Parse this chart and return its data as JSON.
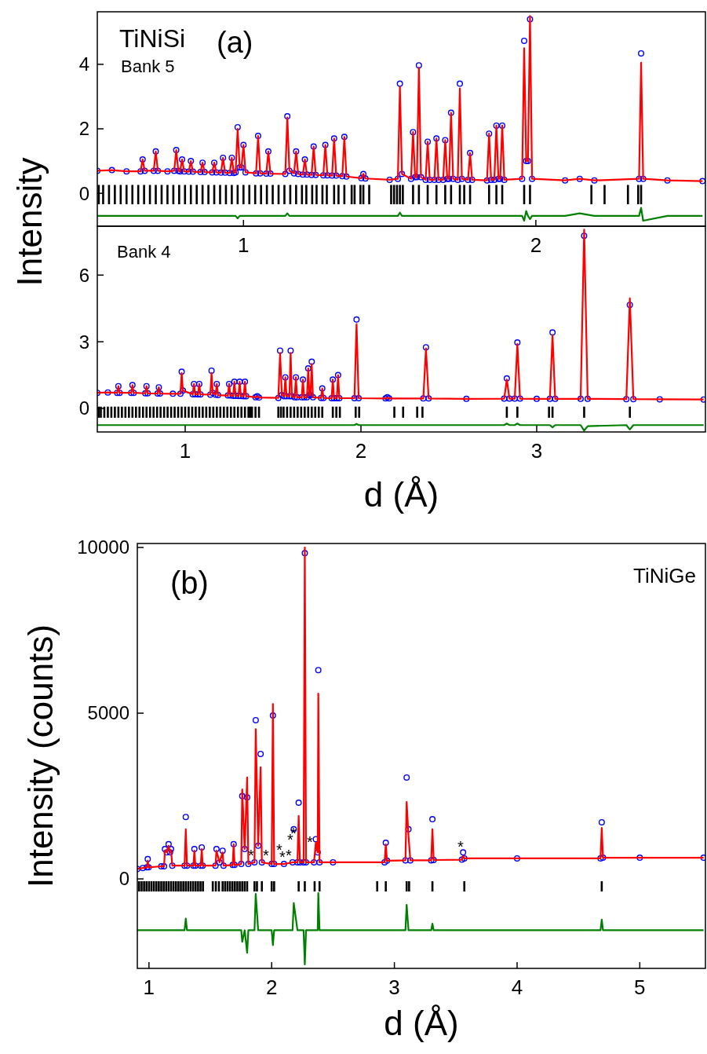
{
  "chart_data": [
    {
      "type": "scatter",
      "annotations": [
        "TiNiSi",
        "(a)",
        "Bank 5"
      ],
      "ylabel": "Intensity",
      "xlim": [
        0.5,
        2.58
      ],
      "xticks": [
        1,
        2
      ],
      "ylim": [
        -1.02,
        5.63
      ],
      "yticks": [
        0,
        2,
        4
      ],
      "x": [
        0.5,
        0.55,
        0.6,
        0.648,
        0.655,
        0.662,
        0.693,
        0.7,
        0.707,
        0.74,
        0.763,
        0.77,
        0.777,
        0.783,
        0.79,
        0.797,
        0.813,
        0.82,
        0.827,
        0.853,
        0.86,
        0.867,
        0.893,
        0.9,
        0.907,
        0.923,
        0.93,
        0.937,
        0.953,
        0.96,
        0.967,
        0.973,
        0.98,
        0.987,
        0.993,
        1.0,
        1.007,
        1.043,
        1.05,
        1.057,
        1.078,
        1.085,
        1.092,
        1.143,
        1.15,
        1.157,
        1.173,
        1.18,
        1.187,
        1.203,
        1.21,
        1.217,
        1.233,
        1.24,
        1.247,
        1.273,
        1.28,
        1.287,
        1.303,
        1.31,
        1.317,
        1.338,
        1.345,
        1.352,
        1.403,
        1.41,
        1.417,
        1.5,
        1.528,
        1.535,
        1.542,
        1.573,
        1.58,
        1.587,
        1.593,
        1.6,
        1.607,
        1.623,
        1.63,
        1.637,
        1.653,
        1.66,
        1.667,
        1.683,
        1.69,
        1.697,
        1.703,
        1.71,
        1.717,
        1.733,
        1.74,
        1.747,
        1.768,
        1.775,
        1.782,
        1.833,
        1.84,
        1.847,
        1.858,
        1.865,
        1.872,
        1.878,
        1.885,
        1.892,
        1.953,
        1.96,
        1.967,
        1.973,
        1.98,
        1.987,
        2.1,
        2.15,
        2.2,
        2.353,
        2.36,
        2.367,
        2.45,
        2.57
      ],
      "series": [
        {
          "marker": "circle",
          "color": "#0000ff",
          "values": [
            0.7,
            0.72,
            0.68,
            0.68,
            1.05,
            0.7,
            0.7,
            1.3,
            0.7,
            0.68,
            0.7,
            1.34,
            0.7,
            0.68,
            1.05,
            0.68,
            0.67,
            1.0,
            0.67,
            0.66,
            0.95,
            0.66,
            0.65,
            0.95,
            0.65,
            0.64,
            1.1,
            0.64,
            0.63,
            1.1,
            0.63,
            0.65,
            2.05,
            0.8,
            0.8,
            1.5,
            0.65,
            0.62,
            1.78,
            0.62,
            0.61,
            1.3,
            0.61,
            0.6,
            2.39,
            0.7,
            0.62,
            1.3,
            0.6,
            0.58,
            1.05,
            0.58,
            0.57,
            1.45,
            0.57,
            0.56,
            1.5,
            0.56,
            0.55,
            1.7,
            0.55,
            0.53,
            1.75,
            0.52,
            0.47,
            0.6,
            0.46,
            0.42,
            0.45,
            3.4,
            0.6,
            0.45,
            1.9,
            0.5,
            0.5,
            3.97,
            0.5,
            0.42,
            1.6,
            0.42,
            0.42,
            1.7,
            0.42,
            0.42,
            1.65,
            0.45,
            0.45,
            2.5,
            0.45,
            0.42,
            3.4,
            0.45,
            0.42,
            1.25,
            0.42,
            0.4,
            1.85,
            0.42,
            0.42,
            2.1,
            0.45,
            0.45,
            2.1,
            0.42,
            0.45,
            4.73,
            1.0,
            1.0,
            5.4,
            0.45,
            0.4,
            0.45,
            0.4,
            0.45,
            4.34,
            0.45,
            0.4,
            0.38
          ]
        },
        {
          "type": "line",
          "color": "#ff0000",
          "values": [
            0.7,
            0.72,
            0.68,
            0.68,
            1.05,
            0.7,
            0.7,
            1.3,
            0.7,
            0.68,
            0.7,
            1.34,
            0.7,
            0.68,
            1.05,
            0.68,
            0.67,
            1.0,
            0.67,
            0.66,
            0.95,
            0.66,
            0.65,
            0.95,
            0.65,
            0.64,
            1.1,
            0.64,
            0.63,
            1.1,
            0.63,
            0.65,
            2.0,
            0.8,
            0.8,
            1.5,
            0.65,
            0.62,
            1.78,
            0.62,
            0.61,
            1.3,
            0.61,
            0.6,
            2.35,
            0.7,
            0.62,
            1.3,
            0.6,
            0.58,
            1.05,
            0.58,
            0.57,
            1.45,
            0.57,
            0.56,
            1.5,
            0.56,
            0.55,
            1.7,
            0.55,
            0.53,
            1.75,
            0.52,
            0.47,
            0.6,
            0.46,
            0.42,
            0.45,
            3.3,
            0.6,
            0.45,
            1.9,
            0.5,
            0.5,
            3.9,
            0.5,
            0.42,
            1.6,
            0.42,
            0.42,
            1.7,
            0.42,
            0.42,
            1.65,
            0.45,
            0.45,
            2.5,
            0.45,
            0.42,
            3.25,
            0.45,
            0.42,
            1.25,
            0.42,
            0.4,
            1.85,
            0.42,
            0.42,
            2.1,
            0.45,
            0.45,
            2.1,
            0.42,
            0.45,
            4.5,
            1.0,
            1.0,
            5.5,
            0.45,
            0.4,
            0.45,
            0.4,
            0.45,
            4.05,
            0.45,
            0.4,
            0.38
          ]
        },
        {
          "type": "line",
          "color": "#008000",
          "values": [
            -0.7,
            -0.7,
            -0.7,
            -0.7,
            -0.7,
            -0.7,
            -0.7,
            -0.7,
            -0.7,
            -0.7,
            -0.7,
            -0.7,
            -0.7,
            -0.7,
            -0.7,
            -0.7,
            -0.7,
            -0.7,
            -0.7,
            -0.7,
            -0.7,
            -0.7,
            -0.7,
            -0.7,
            -0.7,
            -0.7,
            -0.7,
            -0.7,
            -0.7,
            -0.7,
            -0.7,
            -0.7,
            -0.78,
            -0.7,
            -0.7,
            -0.7,
            -0.7,
            -0.7,
            -0.7,
            -0.7,
            -0.7,
            -0.7,
            -0.7,
            -0.7,
            -0.62,
            -0.7,
            -0.7,
            -0.7,
            -0.7,
            -0.7,
            -0.7,
            -0.7,
            -0.7,
            -0.7,
            -0.7,
            -0.7,
            -0.7,
            -0.7,
            -0.7,
            -0.7,
            -0.7,
            -0.7,
            -0.7,
            -0.7,
            -0.7,
            -0.7,
            -0.7,
            -0.7,
            -0.7,
            -0.6,
            -0.7,
            -0.7,
            -0.7,
            -0.7,
            -0.7,
            -0.7,
            -0.7,
            -0.7,
            -0.7,
            -0.7,
            -0.7,
            -0.7,
            -0.7,
            -0.7,
            -0.7,
            -0.7,
            -0.7,
            -0.7,
            -0.7,
            -0.7,
            -0.7,
            -0.7,
            -0.7,
            -0.7,
            -0.7,
            -0.7,
            -0.7,
            -0.7,
            -0.7,
            -0.7,
            -0.7,
            -0.7,
            -0.7,
            -0.7,
            -0.7,
            -0.85,
            -0.55,
            -0.7,
            -0.8,
            -0.7,
            -0.7,
            -0.62,
            -0.7,
            -0.7,
            -0.45,
            -0.85,
            -0.7,
            -0.7
          ]
        },
        {
          "type": "bar",
          "color": "#000000",
          "x": [
            0.505,
            0.52,
            0.54,
            0.56,
            0.58,
            0.6,
            0.62,
            0.64,
            0.66,
            0.68,
            0.7,
            0.72,
            0.74,
            0.76,
            0.78,
            0.8,
            0.82,
            0.84,
            0.86,
            0.88,
            0.9,
            0.92,
            0.94,
            0.96,
            0.98,
            1.0,
            1.02,
            1.04,
            1.06,
            1.08,
            1.1,
            1.12,
            1.14,
            1.16,
            1.18,
            1.2,
            1.215,
            1.235,
            1.25,
            1.27,
            1.285,
            1.31,
            1.325,
            1.345,
            1.37,
            1.38,
            1.4,
            1.41,
            1.43,
            1.505,
            1.515,
            1.525,
            1.535,
            1.545,
            1.58,
            1.6,
            1.63,
            1.66,
            1.69,
            1.71,
            1.74,
            1.755,
            1.775,
            1.84,
            1.865,
            1.885,
            1.96,
            1.98,
            2.19,
            2.235,
            2.315,
            2.35,
            2.36
          ],
          "base": [
            -0.34,
            -0.34,
            -0.34,
            -0.34,
            -0.34,
            -0.34,
            -0.34,
            -0.34,
            -0.34,
            -0.34,
            -0.34,
            -0.34,
            -0.34,
            -0.34,
            -0.34,
            -0.34,
            -0.34,
            -0.34,
            -0.34,
            -0.34,
            -0.34,
            -0.34,
            -0.34,
            -0.34,
            -0.34,
            -0.34,
            -0.34,
            -0.34,
            -0.34,
            -0.34,
            -0.34,
            -0.34,
            -0.34,
            -0.34,
            -0.34,
            -0.34,
            -0.34,
            -0.34,
            -0.34,
            -0.34,
            -0.34,
            -0.34,
            -0.34,
            -0.34,
            -0.34,
            -0.34,
            -0.34,
            -0.34,
            -0.34,
            -0.34,
            -0.34,
            -0.34,
            -0.34,
            -0.34,
            -0.34,
            -0.34,
            -0.34,
            -0.34,
            -0.34,
            -0.34,
            -0.34,
            -0.34,
            -0.34,
            -0.34,
            -0.34,
            -0.34,
            -0.34,
            -0.34,
            -0.34,
            -0.34,
            -0.34,
            -0.34,
            -0.34
          ],
          "values": [
            0.6,
            0.6,
            0.6,
            0.6,
            0.6,
            0.6,
            0.6,
            0.6,
            0.6,
            0.6,
            0.6,
            0.6,
            0.6,
            0.6,
            0.6,
            0.6,
            0.6,
            0.6,
            0.6,
            0.6,
            0.6,
            0.6,
            0.6,
            0.6,
            0.6,
            0.6,
            0.6,
            0.6,
            0.6,
            0.6,
            0.6,
            0.6,
            0.6,
            0.6,
            0.6,
            0.6,
            0.6,
            0.6,
            0.6,
            0.6,
            0.6,
            0.6,
            0.6,
            0.6,
            0.6,
            0.6,
            0.6,
            0.6,
            0.6,
            0.6,
            0.6,
            0.6,
            0.6,
            0.6,
            0.6,
            0.6,
            0.6,
            0.6,
            0.6,
            0.6,
            0.6,
            0.6,
            0.6,
            0.6,
            0.6,
            0.6,
            0.6,
            0.6,
            0.6,
            0.6,
            0.6,
            0.6,
            0.6
          ]
        }
      ]
    },
    {
      "type": "scatter",
      "annotations": [
        "Bank 4"
      ],
      "xlabel": "d (Å)",
      "xlim": [
        0.5,
        3.96
      ],
      "xticks": [
        1,
        2,
        3
      ],
      "ylim": [
        -1.06,
        8.2
      ],
      "yticks": [
        0,
        3,
        6
      ],
      "x": [
        0.5,
        0.56,
        0.613,
        0.62,
        0.627,
        0.693,
        0.7,
        0.707,
        0.773,
        0.78,
        0.787,
        0.843,
        0.85,
        0.857,
        0.93,
        0.973,
        0.98,
        0.987,
        1.043,
        1.05,
        1.057,
        1.073,
        1.08,
        1.087,
        1.143,
        1.15,
        1.157,
        1.173,
        1.18,
        1.187,
        1.243,
        1.25,
        1.257,
        1.273,
        1.28,
        1.287,
        1.303,
        1.31,
        1.317,
        1.333,
        1.34,
        1.347,
        1.4,
        1.41,
        1.42,
        1.53,
        1.54,
        1.55,
        1.563,
        1.57,
        1.577,
        1.593,
        1.6,
        1.607,
        1.623,
        1.63,
        1.637,
        1.663,
        1.67,
        1.677,
        1.693,
        1.7,
        1.707,
        1.713,
        1.72,
        1.727,
        1.773,
        1.78,
        1.787,
        1.833,
        1.84,
        1.847,
        1.863,
        1.87,
        1.877,
        1.963,
        1.975,
        1.987,
        2.14,
        2.15,
        2.16,
        2.355,
        2.37,
        2.385,
        2.6,
        2.815,
        2.83,
        2.845,
        2.875,
        2.89,
        2.905,
        3.0,
        3.075,
        3.09,
        3.105,
        3.25,
        3.27,
        3.29,
        3.51,
        3.53,
        3.55,
        3.7,
        3.95
      ],
      "series": [
        {
          "marker": "circle",
          "color": "#0000ff",
          "values": [
            0.7,
            0.72,
            0.7,
            1.0,
            0.7,
            0.7,
            1.05,
            0.7,
            0.68,
            1.0,
            0.68,
            0.67,
            0.95,
            0.67,
            0.66,
            0.66,
            1.65,
            0.8,
            0.64,
            1.1,
            0.64,
            0.63,
            1.1,
            0.63,
            0.62,
            1.7,
            0.7,
            0.62,
            1.1,
            0.6,
            0.58,
            1.1,
            0.58,
            0.57,
            1.2,
            0.57,
            0.56,
            1.2,
            0.56,
            0.55,
            1.2,
            0.55,
            0.5,
            0.55,
            0.49,
            0.47,
            2.6,
            0.6,
            0.55,
            1.4,
            0.55,
            0.55,
            2.6,
            0.55,
            0.5,
            1.4,
            0.5,
            0.5,
            1.3,
            0.5,
            0.5,
            1.8,
            0.6,
            0.6,
            2.1,
            0.5,
            0.47,
            0.9,
            0.47,
            0.46,
            1.3,
            0.46,
            0.46,
            1.5,
            0.46,
            0.46,
            4.0,
            0.46,
            0.45,
            0.5,
            0.45,
            0.45,
            2.75,
            0.45,
            0.43,
            0.44,
            1.35,
            0.44,
            0.44,
            2.97,
            0.44,
            0.43,
            0.43,
            3.42,
            0.43,
            0.43,
            7.77,
            0.43,
            0.42,
            4.66,
            0.42,
            0.41,
            0.4
          ]
        },
        {
          "type": "line",
          "color": "#ff0000",
          "values": [
            0.7,
            0.72,
            0.7,
            1.0,
            0.7,
            0.7,
            1.05,
            0.7,
            0.68,
            1.0,
            0.68,
            0.67,
            0.95,
            0.67,
            0.66,
            0.66,
            1.6,
            0.8,
            0.64,
            1.1,
            0.64,
            0.63,
            1.1,
            0.63,
            0.62,
            1.6,
            0.7,
            0.62,
            1.1,
            0.6,
            0.58,
            1.1,
            0.58,
            0.57,
            1.2,
            0.57,
            0.56,
            1.2,
            0.56,
            0.55,
            1.2,
            0.55,
            0.5,
            0.55,
            0.49,
            0.47,
            2.5,
            0.6,
            0.55,
            1.4,
            0.55,
            0.55,
            2.5,
            0.55,
            0.5,
            1.4,
            0.5,
            0.5,
            1.3,
            0.5,
            0.5,
            1.8,
            0.6,
            0.6,
            2.0,
            0.5,
            0.47,
            0.9,
            0.47,
            0.46,
            1.3,
            0.46,
            0.46,
            1.5,
            0.46,
            0.46,
            3.8,
            0.46,
            0.45,
            0.5,
            0.45,
            0.45,
            2.7,
            0.45,
            0.43,
            0.44,
            1.3,
            0.44,
            0.44,
            2.9,
            0.44,
            0.43,
            0.43,
            3.3,
            0.43,
            0.43,
            8.05,
            0.43,
            0.42,
            4.95,
            0.42,
            0.41,
            0.4
          ]
        },
        {
          "type": "line",
          "color": "#008000",
          "values": [
            -0.75,
            -0.75,
            -0.75,
            -0.75,
            -0.75,
            -0.75,
            -0.75,
            -0.75,
            -0.75,
            -0.75,
            -0.75,
            -0.75,
            -0.75,
            -0.75,
            -0.75,
            -0.75,
            -0.75,
            -0.75,
            -0.75,
            -0.75,
            -0.75,
            -0.75,
            -0.75,
            -0.75,
            -0.75,
            -0.75,
            -0.75,
            -0.75,
            -0.75,
            -0.75,
            -0.75,
            -0.75,
            -0.75,
            -0.75,
            -0.75,
            -0.75,
            -0.75,
            -0.75,
            -0.75,
            -0.75,
            -0.75,
            -0.75,
            -0.75,
            -0.75,
            -0.75,
            -0.75,
            -0.75,
            -0.75,
            -0.75,
            -0.75,
            -0.75,
            -0.75,
            -0.75,
            -0.75,
            -0.75,
            -0.75,
            -0.75,
            -0.75,
            -0.75,
            -0.75,
            -0.75,
            -0.75,
            -0.75,
            -0.75,
            -0.75,
            -0.75,
            -0.75,
            -0.75,
            -0.75,
            -0.75,
            -0.75,
            -0.75,
            -0.75,
            -0.75,
            -0.75,
            -0.75,
            -0.7,
            -0.75,
            -0.75,
            -0.75,
            -0.75,
            -0.75,
            -0.75,
            -0.75,
            -0.75,
            -0.75,
            -0.68,
            -0.75,
            -0.75,
            -0.68,
            -0.75,
            -0.75,
            -0.75,
            -0.85,
            -0.75,
            -0.75,
            -1.0,
            -0.8,
            -0.75,
            -0.95,
            -0.75,
            -0.75,
            -0.75
          ]
        },
        {
          "type": "bar",
          "color": "#000000",
          "x": [
            0.508,
            0.52,
            0.54,
            0.56,
            0.58,
            0.6,
            0.62,
            0.64,
            0.66,
            0.68,
            0.7,
            0.72,
            0.74,
            0.76,
            0.78,
            0.8,
            0.82,
            0.84,
            0.86,
            0.88,
            0.9,
            0.92,
            0.94,
            0.96,
            0.98,
            1.0,
            1.02,
            1.04,
            1.06,
            1.08,
            1.1,
            1.12,
            1.14,
            1.16,
            1.18,
            1.2,
            1.22,
            1.24,
            1.26,
            1.28,
            1.3,
            1.32,
            1.34,
            1.36,
            1.37,
            1.38,
            1.4,
            1.42,
            1.53,
            1.545,
            1.56,
            1.58,
            1.6,
            1.62,
            1.64,
            1.66,
            1.68,
            1.7,
            1.72,
            1.74,
            1.76,
            1.78,
            1.84,
            1.86,
            1.88,
            1.97,
            1.99,
            2.19,
            2.24,
            2.32,
            2.35,
            2.83,
            2.89,
            3.07,
            3.09,
            3.27,
            3.53
          ],
          "base": [
            -0.42,
            -0.42,
            -0.42,
            -0.42,
            -0.42,
            -0.42,
            -0.42,
            -0.42,
            -0.42,
            -0.42,
            -0.42,
            -0.42,
            -0.42,
            -0.42,
            -0.42,
            -0.42,
            -0.42,
            -0.42,
            -0.42,
            -0.42,
            -0.42,
            -0.42,
            -0.42,
            -0.42,
            -0.42,
            -0.42,
            -0.42,
            -0.42,
            -0.42,
            -0.42,
            -0.42,
            -0.42,
            -0.42,
            -0.42,
            -0.42,
            -0.42,
            -0.42,
            -0.42,
            -0.42,
            -0.42,
            -0.42,
            -0.42,
            -0.42,
            -0.42,
            -0.42,
            -0.42,
            -0.42,
            -0.42,
            -0.42,
            -0.42,
            -0.42,
            -0.42,
            -0.42,
            -0.42,
            -0.42,
            -0.42,
            -0.42,
            -0.42,
            -0.42,
            -0.42,
            -0.42,
            -0.42,
            -0.42,
            -0.42,
            -0.42,
            -0.42,
            -0.42,
            -0.42,
            -0.42,
            -0.42,
            -0.42,
            -0.42,
            -0.42,
            -0.42,
            -0.42,
            -0.42,
            -0.42
          ],
          "values": [
            0.5,
            0.5,
            0.5,
            0.5,
            0.5,
            0.5,
            0.5,
            0.5,
            0.5,
            0.5,
            0.5,
            0.5,
            0.5,
            0.5,
            0.5,
            0.5,
            0.5,
            0.5,
            0.5,
            0.5,
            0.5,
            0.5,
            0.5,
            0.5,
            0.5,
            0.5,
            0.5,
            0.5,
            0.5,
            0.5,
            0.5,
            0.5,
            0.5,
            0.5,
            0.5,
            0.5,
            0.5,
            0.5,
            0.5,
            0.5,
            0.5,
            0.5,
            0.5,
            0.5,
            0.5,
            0.5,
            0.5,
            0.5,
            0.5,
            0.5,
            0.5,
            0.5,
            0.5,
            0.5,
            0.5,
            0.5,
            0.5,
            0.5,
            0.5,
            0.5,
            0.5,
            0.5,
            0.5,
            0.5,
            0.5,
            0.5,
            0.5,
            0.5,
            0.5,
            0.5,
            0.5,
            0.5,
            0.5,
            0.5,
            0.5,
            0.5,
            0.5
          ]
        }
      ]
    },
    {
      "type": "scatter",
      "annotations": [
        "(b)",
        "TiNiGe",
        "*",
        "*",
        "*",
        "*",
        "*",
        "*",
        "*",
        "*",
        "*"
      ],
      "xlabel": "d (Å)",
      "ylabel": "Intensity (counts)",
      "xlim": [
        0.905,
        5.535
      ],
      "xticks": [
        1,
        2,
        3,
        4,
        5
      ],
      "ylim": [
        -2700,
        10120
      ],
      "yticks": [
        0,
        5000,
        10000
      ],
      "x": [
        0.905,
        0.95,
        0.983,
        0.99,
        0.997,
        1.1,
        1.123,
        1.13,
        1.145,
        1.16,
        1.172,
        1.18,
        1.19,
        1.29,
        1.3,
        1.31,
        1.362,
        1.37,
        1.378,
        1.422,
        1.43,
        1.438,
        1.542,
        1.55,
        1.575,
        1.6,
        1.608,
        1.682,
        1.69,
        1.698,
        1.752,
        1.76,
        1.78,
        1.8,
        1.81,
        1.86,
        1.87,
        1.89,
        1.91,
        1.92,
        2.0,
        2.01,
        2.02,
        2.1,
        2.17,
        2.18,
        2.21,
        2.22,
        2.23,
        2.26,
        2.27,
        2.28,
        2.345,
        2.36,
        2.375,
        2.38,
        2.39,
        2.5,
        2.92,
        2.93,
        2.94,
        3.09,
        3.1,
        3.115,
        3.13,
        3.3,
        3.31,
        3.32,
        3.55,
        3.56,
        3.57,
        4.0,
        4.68,
        4.69,
        4.7,
        5.0,
        5.52
      ],
      "series": [
        {
          "marker": "circle",
          "color": "#0000ff",
          "values": [
            300,
            330,
            350,
            600,
            350,
            380,
            380,
            900,
            800,
            1050,
            800,
            900,
            400,
            400,
            1870,
            400,
            400,
            900,
            400,
            400,
            950,
            400,
            400,
            900,
            500,
            850,
            400,
            420,
            1050,
            420,
            450,
            2500,
            900,
            2460,
            450,
            500,
            4790,
            1000,
            3770,
            500,
            450,
            4930,
            450,
            450,
            500,
            1500,
            500,
            2300,
            500,
            500,
            9830,
            500,
            500,
            1200,
            800,
            6300,
            500,
            500,
            500,
            1090,
            550,
            560,
            3060,
            1500,
            560,
            560,
            1800,
            570,
            580,
            800,
            620,
            620,
            620,
            1710,
            640,
            640,
            640
          ]
        },
        {
          "type": "line",
          "color": "#ff0000",
          "values": [
            300,
            330,
            350,
            550,
            350,
            380,
            380,
            850,
            800,
            1000,
            800,
            850,
            400,
            400,
            1500,
            400,
            400,
            850,
            400,
            400,
            900,
            400,
            400,
            850,
            500,
            800,
            400,
            420,
            1050,
            420,
            450,
            2700,
            900,
            3060,
            450,
            500,
            4520,
            1000,
            3370,
            500,
            450,
            5280,
            450,
            450,
            500,
            500,
            500,
            1900,
            500,
            500,
            10000,
            500,
            500,
            1100,
            800,
            5590,
            500,
            500,
            500,
            1040,
            550,
            560,
            2320,
            1300,
            560,
            560,
            1500,
            570,
            580,
            700,
            620,
            620,
            620,
            1540,
            640,
            640,
            640
          ]
        },
        {
          "type": "line",
          "color": "#008000",
          "values": [
            -1550,
            -1550,
            -1550,
            -1550,
            -1550,
            -1550,
            -1550,
            -1550,
            -1550,
            -1550,
            -1550,
            -1550,
            -1550,
            -1550,
            -1200,
            -1550,
            -1550,
            -1550,
            -1550,
            -1550,
            -1550,
            -1550,
            -1550,
            -1550,
            -1550,
            -1550,
            -1550,
            -1550,
            -1550,
            -1550,
            -1550,
            -1900,
            -1550,
            -2230,
            -1550,
            -1550,
            -450,
            -1550,
            -1550,
            -1550,
            -1550,
            -2000,
            -1550,
            -1550,
            -1550,
            -730,
            -1550,
            -1550,
            -1550,
            -1550,
            -2580,
            -1550,
            -1550,
            -1550,
            -1550,
            -430,
            -1550,
            -1550,
            -1550,
            -1550,
            -1550,
            -1550,
            -780,
            -1550,
            -1550,
            -1550,
            -1350,
            -1550,
            -1550,
            -1550,
            -1550,
            -1550,
            -1550,
            -1230,
            -1550,
            -1550,
            -1550
          ]
        },
        {
          "type": "bar",
          "color": "#000000",
          "x": [
            0.92,
            0.94,
            0.96,
            0.98,
            1.0,
            1.02,
            1.04,
            1.06,
            1.08,
            1.1,
            1.12,
            1.14,
            1.16,
            1.18,
            1.2,
            1.22,
            1.24,
            1.26,
            1.28,
            1.3,
            1.32,
            1.34,
            1.36,
            1.38,
            1.4,
            1.42,
            1.44,
            1.52,
            1.545,
            1.57,
            1.6,
            1.62,
            1.64,
            1.66,
            1.68,
            1.7,
            1.72,
            1.74,
            1.76,
            1.78,
            1.8,
            1.86,
            1.88,
            1.92,
            2.0,
            2.02,
            2.22,
            2.27,
            2.35,
            2.39,
            2.86,
            2.93,
            3.1,
            3.12,
            3.31,
            3.57,
            4.69
          ],
          "base": [
            -380,
            -380,
            -380,
            -380,
            -380,
            -380,
            -380,
            -380,
            -380,
            -380,
            -380,
            -380,
            -380,
            -380,
            -380,
            -380,
            -380,
            -380,
            -380,
            -380,
            -380,
            -380,
            -380,
            -380,
            -380,
            -380,
            -380,
            -380,
            -380,
            -380,
            -380,
            -380,
            -380,
            -380,
            -380,
            -380,
            -380,
            -380,
            -380,
            -380,
            -380,
            -380,
            -380,
            -380,
            -380,
            -380,
            -380,
            -380,
            -380,
            -380,
            -380,
            -380,
            -380,
            -380,
            -380,
            -380,
            -380
          ],
          "values": [
            310,
            310,
            310,
            310,
            310,
            310,
            310,
            310,
            310,
            310,
            310,
            310,
            310,
            310,
            310,
            310,
            310,
            310,
            310,
            310,
            310,
            310,
            310,
            310,
            310,
            310,
            310,
            310,
            310,
            310,
            310,
            310,
            310,
            310,
            310,
            310,
            310,
            310,
            310,
            310,
            310,
            310,
            310,
            310,
            310,
            310,
            310,
            310,
            310,
            310,
            310,
            310,
            310,
            310,
            310,
            310,
            310
          ]
        }
      ]
    }
  ]
}
